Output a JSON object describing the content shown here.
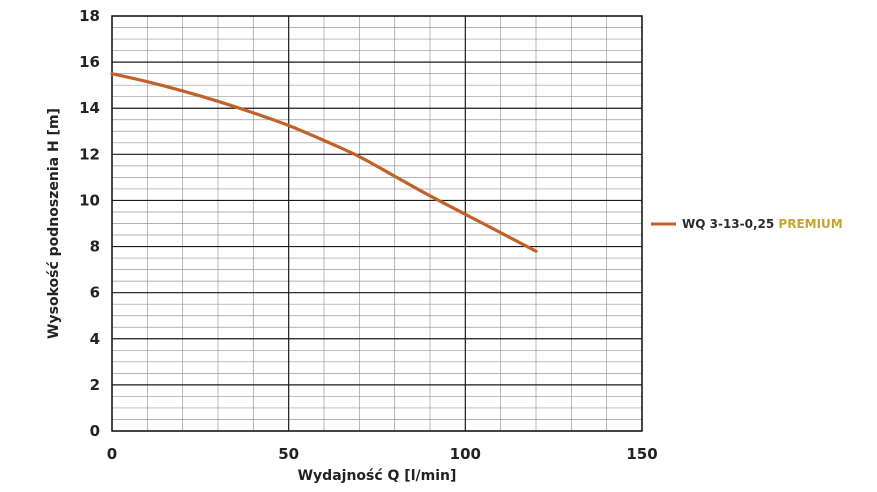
{
  "chart_data": {
    "type": "line",
    "xlabel": "Wydajność Q [l/min]",
    "ylabel": "Wysokość podnoszenia H [m]",
    "xlim": [
      0,
      150
    ],
    "ylim": [
      0,
      18
    ],
    "x_ticks": [
      0,
      50,
      100,
      150
    ],
    "y_ticks": [
      0,
      2,
      4,
      6,
      8,
      10,
      12,
      14,
      16,
      18
    ],
    "grid": true,
    "legend_position": "right",
    "series": [
      {
        "name": "WQ 3-13-0,25 PREMIUM",
        "name_parts": [
          "WQ 3-13-0,25 ",
          "PREMIUM"
        ],
        "color": "#c0622a",
        "x": [
          0,
          10,
          20,
          30,
          40,
          50,
          60,
          70,
          80,
          90,
          100,
          110,
          120
        ],
        "y": [
          15.5,
          15.15,
          14.75,
          14.3,
          13.8,
          13.25,
          12.6,
          11.9,
          11.05,
          10.2,
          9.4,
          8.6,
          7.8
        ]
      }
    ]
  }
}
